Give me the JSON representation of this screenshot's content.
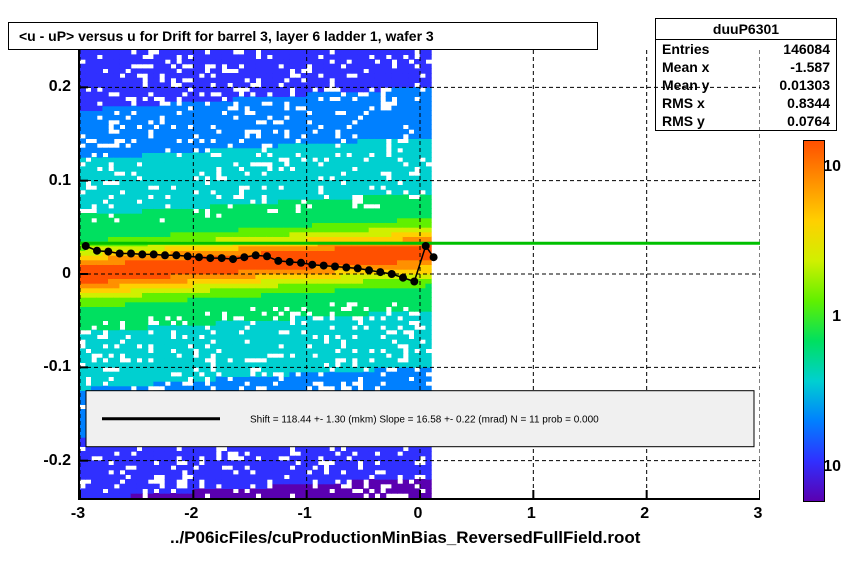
{
  "title": "<u - uP>       versus   u for Drift for barrel 3, layer 6 ladder 1, wafer 3",
  "stats": {
    "name": "duuP6301",
    "entries_label": "Entries",
    "entries": "146084",
    "meanx_label": "Mean x",
    "meanx": "-1.587",
    "meany_label": "Mean y",
    "meany": "0.01303",
    "rmsx_label": "RMS x",
    "rmsx": "0.8344",
    "rmsy_label": "RMS y",
    "rmsy": "0.0764"
  },
  "xaxis": {
    "min": -3,
    "max": 3,
    "ticks": [
      -3,
      -2,
      -1,
      0,
      1,
      2,
      3
    ]
  },
  "yaxis": {
    "min": -0.24,
    "max": 0.24,
    "ticks": [
      -0.2,
      -0.1,
      0,
      0.1,
      0.2
    ]
  },
  "xlabel": "../P06icFiles/cuProductionMinBias_ReversedFullField.root",
  "colorbar": {
    "labels": [
      "10",
      "1",
      "10"
    ],
    "gradient": [
      "#5a00b0",
      "#3030ff",
      "#0080ff",
      "#00d0d0",
      "#00e060",
      "#60f000",
      "#d0f000",
      "#ffd000",
      "#ff9000",
      "#ff5000"
    ]
  },
  "fit": {
    "text": "Shift =    118.44 +- 1.30 (mkm) Slope =     16.58 +- 0.22 (mrad)  N = 11 prob = 0.000"
  },
  "green_line_y": 0.033,
  "profile_points": [
    {
      "x": -2.95,
      "y": 0.03
    },
    {
      "x": -2.85,
      "y": 0.025
    },
    {
      "x": -2.75,
      "y": 0.024
    },
    {
      "x": -2.65,
      "y": 0.022
    },
    {
      "x": -2.55,
      "y": 0.022
    },
    {
      "x": -2.45,
      "y": 0.021
    },
    {
      "x": -2.35,
      "y": 0.021
    },
    {
      "x": -2.25,
      "y": 0.02
    },
    {
      "x": -2.15,
      "y": 0.02
    },
    {
      "x": -2.05,
      "y": 0.019
    },
    {
      "x": -1.95,
      "y": 0.018
    },
    {
      "x": -1.85,
      "y": 0.017
    },
    {
      "x": -1.75,
      "y": 0.017
    },
    {
      "x": -1.65,
      "y": 0.016
    },
    {
      "x": -1.55,
      "y": 0.018
    },
    {
      "x": -1.45,
      "y": 0.02
    },
    {
      "x": -1.35,
      "y": 0.019
    },
    {
      "x": -1.25,
      "y": 0.014
    },
    {
      "x": -1.15,
      "y": 0.013
    },
    {
      "x": -1.05,
      "y": 0.012
    },
    {
      "x": -0.95,
      "y": 0.01
    },
    {
      "x": -0.85,
      "y": 0.009
    },
    {
      "x": -0.75,
      "y": 0.008
    },
    {
      "x": -0.65,
      "y": 0.007
    },
    {
      "x": -0.55,
      "y": 0.006
    },
    {
      "x": -0.45,
      "y": 0.004
    },
    {
      "x": -0.35,
      "y": 0.002
    },
    {
      "x": -0.25,
      "y": 0.0
    },
    {
      "x": -0.15,
      "y": -0.004
    },
    {
      "x": -0.05,
      "y": -0.008
    },
    {
      "x": 0.05,
      "y": 0.03
    },
    {
      "x": 0.12,
      "y": 0.018
    }
  ],
  "chart_style": {
    "type": "2d-histogram-colz",
    "background_color": "#ffffff",
    "grid_color": "#000000",
    "grid_dash": "4,3",
    "marker_color": "#000000",
    "marker_size": 4,
    "green_line_color": "#00c000",
    "green_line_width": 3,
    "fit_box_bg": "#f0f0f0",
    "title_fontsize": 14,
    "axis_label_fontsize": 16,
    "xlabel_fontsize": 17
  }
}
